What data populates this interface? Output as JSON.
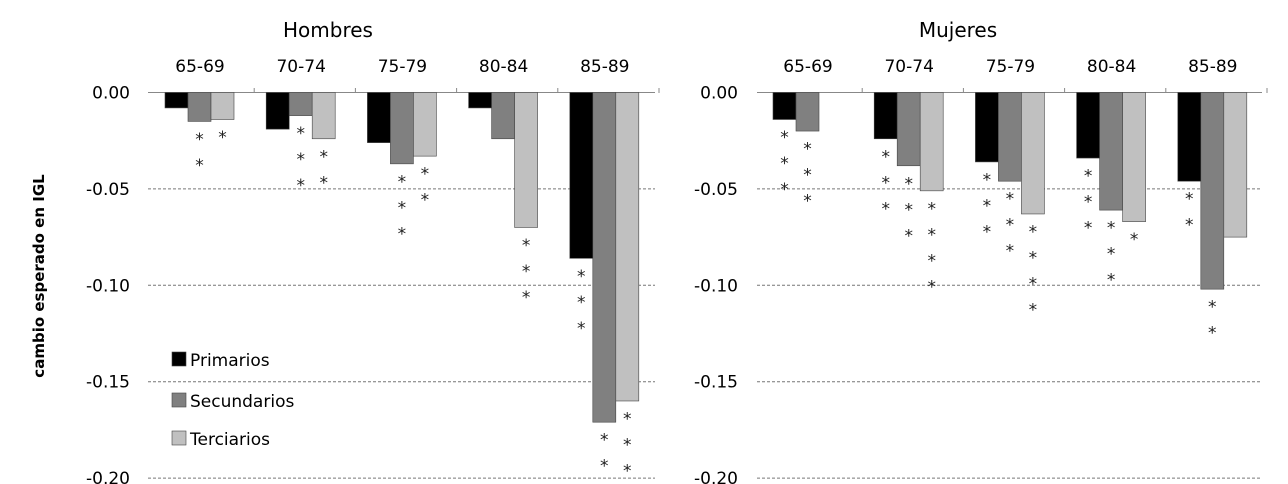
{
  "chart_data": {
    "type": "bar",
    "ylabel": "cambio esperado en IGL",
    "ylim": [
      -0.2,
      0.0
    ],
    "yticks": [
      "0.00",
      "-0.05",
      "-0.10",
      "-0.15",
      "-0.20"
    ],
    "yticks_values": [
      0.0,
      -0.05,
      -0.1,
      -0.15,
      -0.2
    ],
    "grid": true,
    "legend_position": "bottom-left",
    "series_names": [
      "Primarios",
      "Secundarios",
      "Terciarios"
    ],
    "colors": [
      "#000000",
      "#808080",
      "#c0c0c0"
    ],
    "panels": [
      {
        "title": "Hombres",
        "categories": [
          "65-69",
          "70-74",
          "75-79",
          "80-84",
          "85-89"
        ],
        "series": [
          {
            "name": "Primarios",
            "values": [
              -0.008,
              -0.019,
              -0.026,
              -0.008,
              -0.086
            ],
            "significance": [
              "",
              "",
              "",
              "",
              "***"
            ]
          },
          {
            "name": "Secundarios",
            "values": [
              -0.015,
              -0.012,
              -0.037,
              -0.024,
              -0.171
            ],
            "significance": [
              "**",
              "***",
              "***",
              "",
              "***"
            ]
          },
          {
            "name": "Terciarios",
            "values": [
              -0.014,
              -0.024,
              -0.033,
              -0.07,
              -0.16
            ],
            "significance": [
              "*",
              "**",
              "**",
              "***",
              "***"
            ]
          }
        ]
      },
      {
        "title": "Mujeres",
        "categories": [
          "65-69",
          "70-74",
          "75-79",
          "80-84",
          "85-89"
        ],
        "series": [
          {
            "name": "Primarios",
            "values": [
              -0.014,
              -0.024,
              -0.036,
              -0.034,
              -0.046
            ],
            "significance": [
              "***",
              "***",
              "***",
              "***",
              "**"
            ]
          },
          {
            "name": "Secundarios",
            "values": [
              -0.02,
              -0.038,
              -0.046,
              -0.061,
              -0.102
            ],
            "significance": [
              "***",
              "***",
              "***",
              "***",
              "**"
            ]
          },
          {
            "name": "Terciarios",
            "values": [
              0.0,
              -0.051,
              -0.063,
              -0.067,
              -0.075
            ],
            "significance": [
              "",
              "****",
              "****",
              "*",
              ""
            ]
          }
        ]
      }
    ]
  }
}
